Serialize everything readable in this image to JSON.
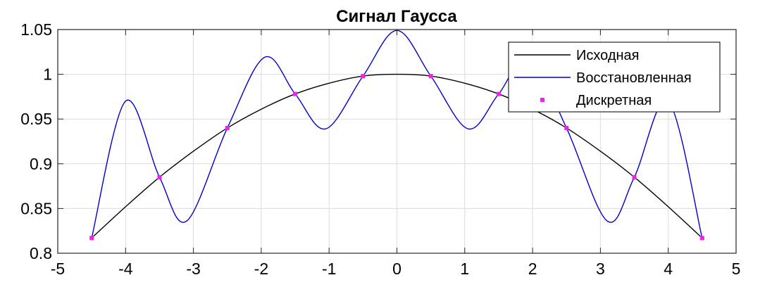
{
  "chart_data": {
    "type": "line",
    "title": "Сигнал Гаусса",
    "xlabel": "",
    "ylabel": "",
    "xlim": [
      -5,
      5
    ],
    "ylim": [
      0.8,
      1.05
    ],
    "x_ticks": [
      -5,
      -4,
      -3,
      -2,
      -1,
      0,
      1,
      2,
      3,
      4,
      5
    ],
    "x_tick_labels": [
      "-5",
      "-4",
      "-3",
      "-2",
      "-1",
      "0",
      "1",
      "2",
      "3",
      "4",
      "5"
    ],
    "y_ticks": [
      0.8,
      0.85,
      0.9,
      0.95,
      1,
      1.05
    ],
    "y_tick_labels": [
      "0.8",
      "0.85",
      "0.9",
      "0.95",
      "1",
      "1.05"
    ],
    "grid": true,
    "legend_position": "top-right",
    "series": [
      {
        "name": "Исходная",
        "kind": "line",
        "color": "#000000",
        "x": [
          -4.5,
          -4.0,
          -3.5,
          -3.0,
          -2.5,
          -2.0,
          -1.5,
          -1.0,
          -0.5,
          0.0,
          0.5,
          1.0,
          1.5,
          2.0,
          2.5,
          3.0,
          3.5,
          4.0,
          4.5
        ],
        "y": [
          0.817,
          0.852,
          0.885,
          0.914,
          0.94,
          0.961,
          0.978,
          0.99,
          0.998,
          1.0,
          0.998,
          0.99,
          0.978,
          0.961,
          0.94,
          0.914,
          0.885,
          0.852,
          0.817
        ]
      },
      {
        "name": "Восстановленная",
        "kind": "line",
        "color": "#0000cc",
        "x": [
          -4.5,
          -4.0,
          -3.5,
          -3.1,
          -2.5,
          -1.95,
          -1.5,
          -1.05,
          -0.5,
          0.0,
          0.5,
          1.05,
          1.5,
          1.95,
          2.5,
          3.1,
          3.5,
          4.0,
          4.5
        ],
        "y": [
          0.817,
          0.97,
          0.885,
          0.836,
          0.94,
          1.019,
          0.978,
          0.939,
          0.998,
          1.049,
          0.998,
          0.939,
          0.978,
          1.019,
          0.94,
          0.836,
          0.885,
          0.97,
          0.817
        ]
      },
      {
        "name": "Дискретная",
        "kind": "markers",
        "color": "#ee22ee",
        "x": [
          -4.5,
          -3.5,
          -2.5,
          -1.5,
          -0.5,
          0.5,
          1.5,
          2.5,
          3.5,
          4.5
        ],
        "y": [
          0.817,
          0.885,
          0.94,
          0.978,
          0.998,
          0.998,
          0.978,
          0.94,
          0.885,
          0.817
        ]
      }
    ]
  }
}
